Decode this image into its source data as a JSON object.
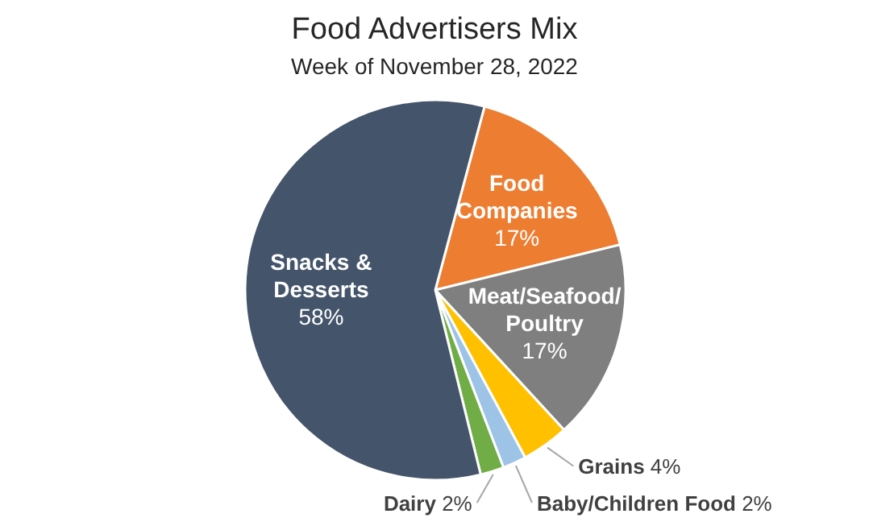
{
  "chart_data": {
    "type": "pie",
    "title": "Food Advertisers Mix",
    "subtitle": "Week of November 28, 2022",
    "categories": [
      "Food Companies",
      "Meat/Seafood/Poultry",
      "Grains",
      "Baby/Children Food",
      "Dairy",
      "Snacks & Desserts"
    ],
    "values": [
      17,
      17,
      4,
      2,
      2,
      58
    ],
    "colors": [
      "#ed7d31",
      "#7f7f7f",
      "#ffc000",
      "#9dc3e6",
      "#70ad47",
      "#44546a"
    ],
    "value_labels": [
      "17%",
      "17%",
      "4%",
      "2%",
      "2%",
      "58%"
    ]
  }
}
